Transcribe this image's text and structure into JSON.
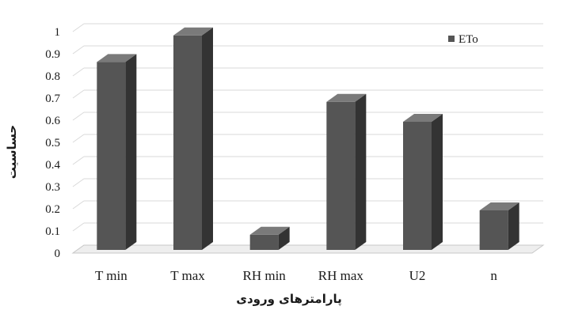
{
  "chart_data": {
    "type": "bar",
    "categories": [
      "T min",
      "T max",
      "RH min",
      "RH max",
      "U2",
      "n"
    ],
    "series": [
      {
        "name": "ETo",
        "values": [
          0.87,
          0.99,
          0.09,
          0.69,
          0.6,
          0.2
        ]
      }
    ],
    "xlabel": "پارامترهای ورودی",
    "ylabel": "حساسیت",
    "ylim": [
      0,
      1
    ],
    "yticks": [
      "0",
      "0.1",
      "0.2",
      "0.3",
      "0.4",
      "0.5",
      "0.6",
      "0.7",
      "0.8",
      "0.9",
      "1"
    ],
    "grid": true,
    "legend_position": "top-right",
    "style": "3d-column",
    "colors": {
      "bar_front": "#555555",
      "bar_side": "#333333",
      "bar_top": "#7a7a7a",
      "grid": "#d9d9d9",
      "floor": "#c8c8c8"
    }
  }
}
